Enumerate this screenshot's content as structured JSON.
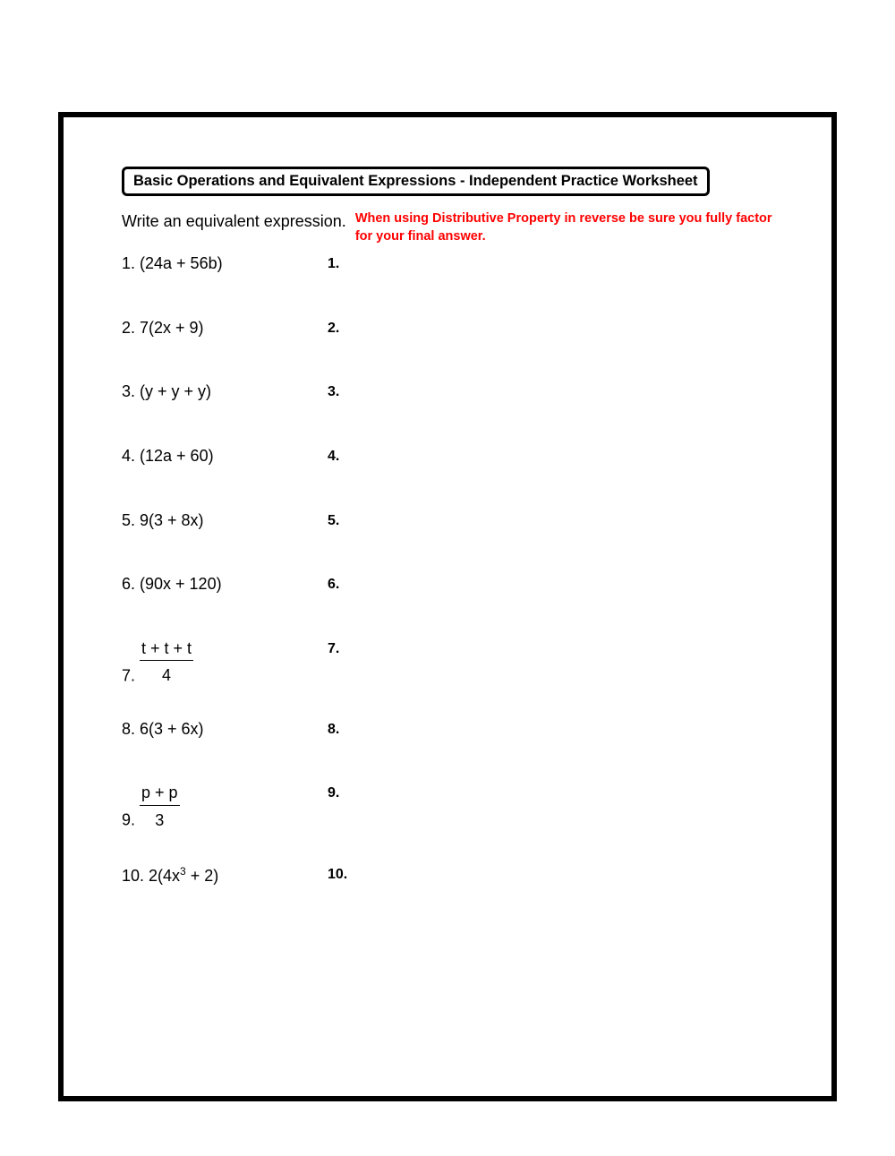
{
  "title": "Basic Operations and Equivalent Expressions - Independent Practice Worksheet",
  "instructions": "Write an equivalent expression.",
  "note": "When using Distributive Property in reverse be sure you fully factor for your final answer.",
  "problems": {
    "p1": {
      "label": "1. (24a + 56b)",
      "ans": "1."
    },
    "p2": {
      "label": "2. 7(2x + 9)",
      "ans": "2."
    },
    "p3": {
      "label": "3. (y + y + y)",
      "ans": "3."
    },
    "p4": {
      "label": "4. (12a + 60)",
      "ans": "4."
    },
    "p5": {
      "label": "5. 9(3 + 8x)",
      "ans": "5."
    },
    "p6": {
      "label": "6. (90x + 120)",
      "ans": "6."
    },
    "p7": {
      "prefix": "7. ",
      "numerator": "t + t + t",
      "denominator": "4",
      "ans": "7."
    },
    "p8": {
      "label": "8. 6(3 + 6x)",
      "ans": "8."
    },
    "p9": {
      "prefix": "9. ",
      "numerator": "p + p",
      "denominator": "3",
      "ans": "9."
    },
    "p10": {
      "prefix": "10. 2(4x",
      "suffix": " + 2)",
      "exponent": "3",
      "ans": "10."
    }
  },
  "colors": {
    "text": "#000000",
    "note": "#ff0000",
    "background": "#ffffff",
    "border": "#000000"
  },
  "typography": {
    "body_fontsize_pt": 14,
    "title_fontsize_pt": 12,
    "note_fontsize_pt": 11,
    "font_family": "Verdana"
  }
}
